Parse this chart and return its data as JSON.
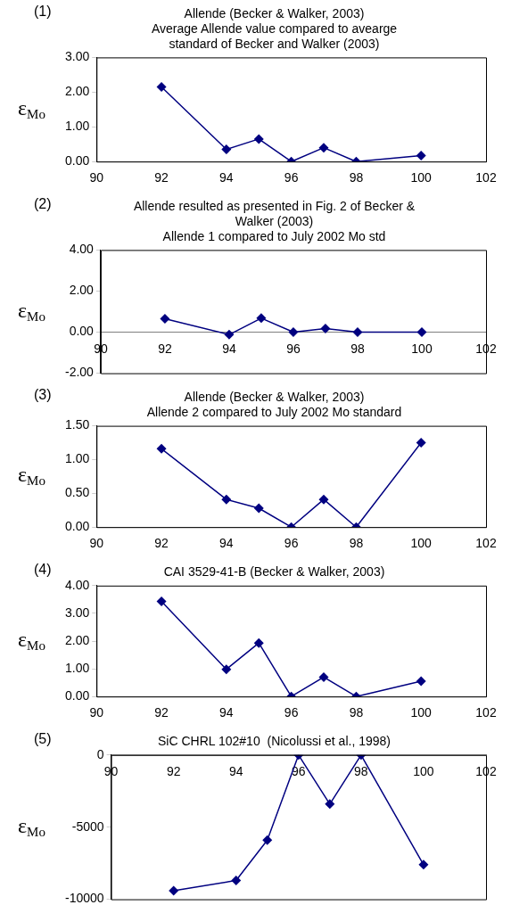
{
  "chart_data": [
    {
      "type": "line",
      "title": "Allende (Becker & Walker, 2003)",
      "subtitle": "Average Allende value compared to avearge standard of Becker and Walker (2003)",
      "ylabel": "ε$_{Mo}$",
      "annotations": [
        "(1)"
      ],
      "x": [
        92,
        94,
        95,
        96,
        97,
        98,
        100
      ],
      "series": [
        {
          "color": "#000080",
          "values": [
            2.15,
            0.35,
            0.65,
            0,
            0.4,
            0,
            0.17
          ]
        }
      ],
      "xlim": [
        90,
        102
      ],
      "xticks": [
        90,
        92,
        94,
        96,
        98,
        100,
        102
      ],
      "ylim": [
        0,
        3
      ],
      "yticks": [
        {
          "value": 0,
          "label": "0.00"
        },
        {
          "value": 1,
          "label": "1.00"
        },
        {
          "value": 2,
          "label": "2.00"
        },
        {
          "value": 3,
          "label": "3.00"
        }
      ],
      "grid": false,
      "legend": false,
      "marker": "diamond",
      "line_style": "solid"
    },
    {
      "type": "line",
      "title": "Allende resulted as presented in Fig. 2 of Becker & Walker (2003)",
      "subtitle": "Allende 1 compared to July 2002 Mo std",
      "ylabel": "ε$_{Mo}$",
      "annotations": [
        "(2)"
      ],
      "x": [
        92,
        94,
        95,
        96,
        97,
        98,
        100
      ],
      "series": [
        {
          "color": "#000080",
          "values": [
            0.65,
            -0.12,
            0.68,
            0,
            0.17,
            0,
            0
          ]
        }
      ],
      "xlim": [
        90,
        102
      ],
      "xticks": [
        90,
        92,
        94,
        96,
        98,
        100,
        102
      ],
      "ylim": [
        -2,
        4
      ],
      "yticks": [
        {
          "value": -2,
          "label": "-2.00"
        },
        {
          "value": 0,
          "label": "0.00"
        },
        {
          "value": 2,
          "label": "2.00"
        },
        {
          "value": 4,
          "label": "4.00"
        }
      ],
      "grid": false,
      "legend": false,
      "marker": "diamond",
      "line_style": "solid"
    },
    {
      "type": "line",
      "title": "Allende (Becker & Walker, 2003)",
      "subtitle": "Allende 2 compared to July 2002 Mo standard",
      "ylabel": "ε$_{Mo}$",
      "annotations": [
        "(3)"
      ],
      "x": [
        92,
        94,
        95,
        96,
        97,
        98,
        100
      ],
      "series": [
        {
          "color": "#000080",
          "values": [
            1.16,
            0.41,
            0.28,
            0,
            0.41,
            0,
            1.25
          ]
        }
      ],
      "xlim": [
        90,
        102
      ],
      "xticks": [
        90,
        92,
        94,
        96,
        98,
        100,
        102
      ],
      "ylim": [
        0,
        1.5
      ],
      "yticks": [
        {
          "value": 0,
          "label": "0.00"
        },
        {
          "value": 0.5,
          "label": "0.50"
        },
        {
          "value": 1,
          "label": "1.00"
        },
        {
          "value": 1.5,
          "label": "1.50"
        }
      ],
      "grid": false,
      "legend": false,
      "marker": "diamond",
      "line_style": "solid"
    },
    {
      "type": "line",
      "title": "CAI 3529-41-B (Becker & Walker, 2003)",
      "ylabel": "ε$_{Mo}$",
      "annotations": [
        "(4)"
      ],
      "x": [
        92,
        94,
        95,
        96,
        97,
        98,
        100
      ],
      "series": [
        {
          "color": "#000080",
          "values": [
            3.43,
            0.98,
            1.93,
            0,
            0.7,
            0,
            0.55
          ]
        }
      ],
      "xlim": [
        90,
        102
      ],
      "xticks": [
        90,
        92,
        94,
        96,
        98,
        100,
        102
      ],
      "ylim": [
        0,
        4
      ],
      "yticks": [
        {
          "value": 0,
          "label": "0.00"
        },
        {
          "value": 1,
          "label": "1.00"
        },
        {
          "value": 2,
          "label": "2.00"
        },
        {
          "value": 3,
          "label": "3.00"
        },
        {
          "value": 4,
          "label": "4.00"
        }
      ],
      "grid": false,
      "legend": false,
      "marker": "diamond",
      "line_style": "solid"
    },
    {
      "type": "line",
      "title": "SiC CHRL 102#10  (Nicolussi et al., 1998)",
      "ylabel": "ε$_{Mo}$",
      "annotations": [
        "(5)"
      ],
      "x": [
        92,
        94,
        95,
        96,
        97,
        98,
        100
      ],
      "series": [
        {
          "color": "#000080",
          "values": [
            -9400,
            -8700,
            -5900,
            0,
            -3400,
            0,
            -7600
          ]
        }
      ],
      "xlim": [
        90,
        102
      ],
      "xticks": [
        90,
        92,
        94,
        96,
        98,
        100,
        102
      ],
      "ylim": [
        -10000,
        0
      ],
      "yticks": [
        -10000,
        -5000,
        0
      ],
      "grid": false,
      "legend": false,
      "marker": "diamond",
      "line_style": "solid"
    }
  ]
}
